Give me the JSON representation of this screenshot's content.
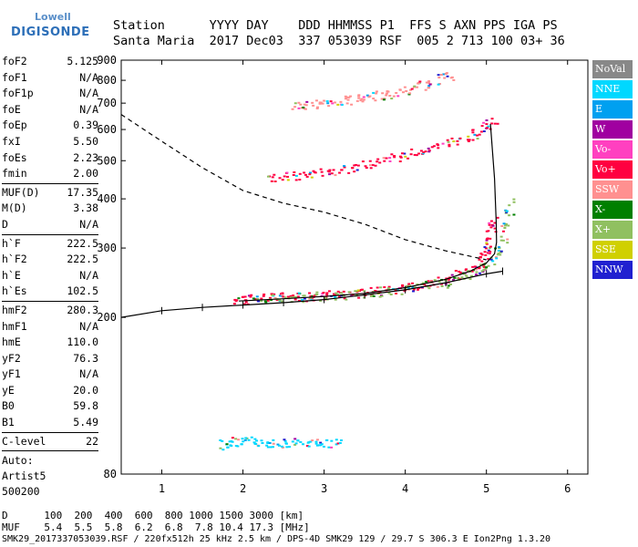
{
  "logo": {
    "line1": "Lowell",
    "line2": "DIGISONDE"
  },
  "header": {
    "row1": "Station      YYYY DAY    DDD HHMMSS P1  FFS S AXN PPS IGA PS",
    "row2": "Santa Maria  2017 Dec03  337 053039 RSF  005 2 713 100 03+ 36"
  },
  "params": [
    {
      "label": "foF2",
      "value": "5.125"
    },
    {
      "label": "foF1",
      "value": "N/A"
    },
    {
      "label": "foF1p",
      "value": "N/A"
    },
    {
      "label": "foE",
      "value": "N/A"
    },
    {
      "label": "foEp",
      "value": "0.39"
    },
    {
      "label": "fxI",
      "value": "5.50"
    },
    {
      "label": "foEs",
      "value": "2.23"
    },
    {
      "label": "fmin",
      "value": "2.00"
    },
    {
      "sep": true
    },
    {
      "label": "MUF(D)",
      "value": "17.35"
    },
    {
      "label": "M(D)",
      "value": "3.38"
    },
    {
      "label": "D",
      "value": "N/A"
    },
    {
      "sep": true
    },
    {
      "label": "h`F",
      "value": "222.5"
    },
    {
      "label": "h`F2",
      "value": "222.5"
    },
    {
      "label": "h`E",
      "value": "N/A"
    },
    {
      "label": "h`Es",
      "value": "102.5"
    },
    {
      "sep": true
    },
    {
      "label": "hmF2",
      "value": "280.3"
    },
    {
      "label": "hmF1",
      "value": "N/A"
    },
    {
      "label": "hmE",
      "value": "110.0"
    },
    {
      "label": "yF2",
      "value": "76.3"
    },
    {
      "label": "yF1",
      "value": "N/A"
    },
    {
      "label": "yE",
      "value": "20.0"
    },
    {
      "label": "B0",
      "value": "59.8"
    },
    {
      "label": "B1",
      "value": "5.49"
    },
    {
      "sep": true
    },
    {
      "label": "C-level",
      "value": "22"
    },
    {
      "sep": true
    }
  ],
  "auto": [
    "Auto:",
    "Artist5",
    "500200"
  ],
  "legend": [
    {
      "label": "NoVal",
      "color": "#888888"
    },
    {
      "label": "NNE",
      "color": "#00d8ff"
    },
    {
      "label": "E",
      "color": "#00a0f0"
    },
    {
      "label": "W",
      "color": "#a000a0"
    },
    {
      "label": "Vo-",
      "color": "#ff40c0"
    },
    {
      "label": "Vo+",
      "color": "#ff0040"
    },
    {
      "label": "SSW",
      "color": "#ff9090"
    },
    {
      "label": "X-",
      "color": "#008000"
    },
    {
      "label": "X+",
      "color": "#90c060"
    },
    {
      "label": "SSE",
      "color": "#d0d000"
    },
    {
      "label": "NNW",
      "color": "#2020d0"
    }
  ],
  "footer": {
    "line1": "D      100  200  400  600  800 1000 1500 3000 [km]",
    "line2": "MUF    5.4  5.5  5.8  6.2  6.8  7.8 10.4 17.3 [MHz]",
    "line3": "SMK29_2017337053039.RSF / 220fx512h 25 kHz 2.5 km / DPS-4D SMK29 129 / 29.7 S 306.3 E Ion2Png 1.3.20"
  },
  "chart_data": {
    "type": "scatter",
    "title": "",
    "xlabel": "",
    "ylabel": "",
    "xlim": [
      0.5,
      6.25
    ],
    "ylim": [
      80,
      900
    ],
    "x_ticks": [
      "1",
      "2",
      "3",
      "4",
      "5",
      "6"
    ],
    "y_ticks": [
      "80",
      "200",
      "300",
      "400",
      "500",
      "600",
      "700",
      "800",
      "900"
    ],
    "y_scale": "log",
    "curves": [
      {
        "name": "profile_foF2",
        "x": [
          1.95,
          2.5,
          3.0,
          3.5,
          4.0,
          4.5,
          4.8,
          5.0,
          5.1,
          5.125,
          5.12,
          5.1,
          5.05
        ],
        "y": [
          220,
          223,
          226,
          230,
          238,
          250,
          262,
          275,
          290,
          310,
          350,
          450,
          620
        ]
      },
      {
        "name": "trace_model",
        "x": [
          0.5,
          1.0,
          1.5,
          2.0,
          2.5,
          3.0,
          3.5,
          4.0,
          4.5,
          5.0,
          5.2
        ],
        "y": [
          200,
          208,
          212,
          215,
          218,
          222,
          228,
          235,
          245,
          258,
          262
        ]
      },
      {
        "name": "muf_dashed",
        "x": [
          0.5,
          1.0,
          1.5,
          2.0,
          2.5,
          3.0,
          3.5,
          4.0,
          4.5,
          5.0
        ],
        "y": [
          655,
          560,
          480,
          420,
          390,
          370,
          345,
          315,
          295,
          280
        ]
      }
    ],
    "echo_clusters": [
      {
        "name": "F2 trace",
        "color": "#ff0040",
        "x": [
          1.9,
          2.2,
          2.6,
          3.0,
          3.5,
          4.0,
          4.5,
          4.9,
          5.0,
          5.1
        ],
        "y": [
          222,
          224,
          226,
          228,
          232,
          238,
          250,
          268,
          300,
          360
        ]
      },
      {
        "name": "F2 X trace",
        "color": "#90c060",
        "x": [
          2.2,
          2.8,
          3.4,
          4.0,
          4.6,
          5.0,
          5.2,
          5.3
        ],
        "y": [
          224,
          226,
          230,
          236,
          248,
          270,
          310,
          400
        ]
      },
      {
        "name": "2-hop",
        "color": "#ff0040",
        "x": [
          2.3,
          2.8,
          3.3,
          3.8,
          4.3,
          4.8,
          5.1
        ],
        "y": [
          450,
          462,
          480,
          505,
          540,
          580,
          640
        ]
      },
      {
        "name": "3-hop",
        "color": "#ff9090",
        "x": [
          2.6,
          3.0,
          3.4,
          3.8,
          4.2,
          4.6
        ],
        "y": [
          695,
          700,
          720,
          740,
          780,
          830
        ]
      },
      {
        "name": "Es",
        "color": "#00d8ff",
        "x": [
          1.7,
          2.0,
          2.4,
          2.8,
          3.2
        ],
        "y": [
          95,
          98,
          96,
          97,
          96
        ]
      }
    ]
  }
}
